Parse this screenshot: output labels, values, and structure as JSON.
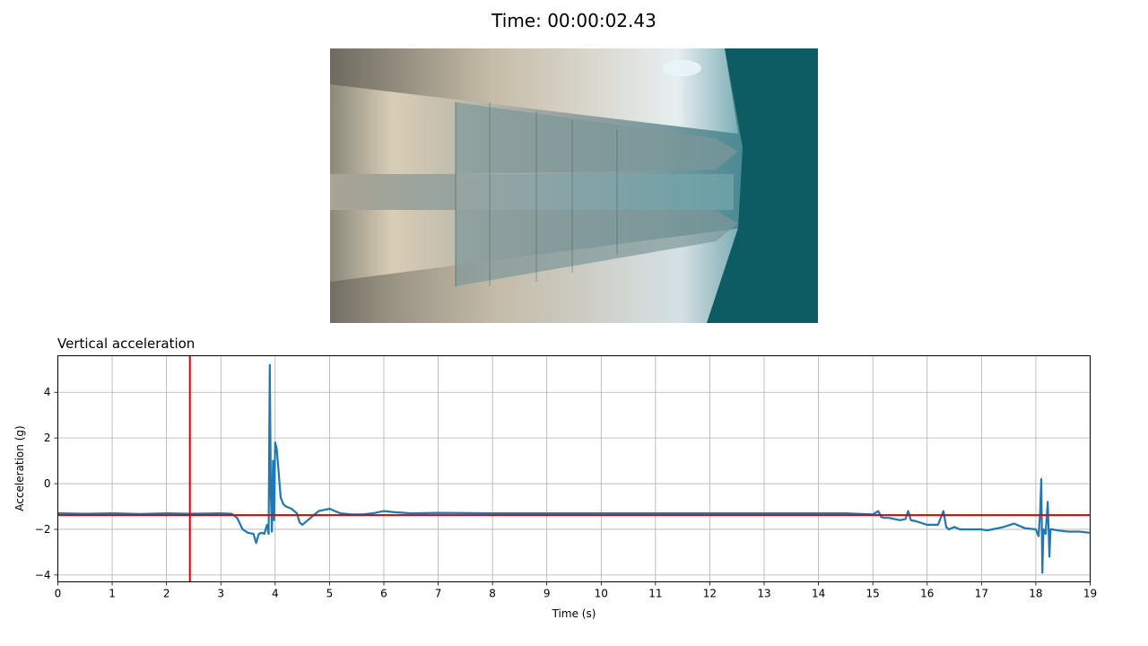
{
  "figure_title": "Time: 00:00:02.43",
  "video_frame": {
    "icon": "camera-frame-image",
    "description_colors": [
      "#9a9686",
      "#0d5b63"
    ]
  },
  "chart_data": {
    "type": "line",
    "title": "Vertical acceleration",
    "xlabel": "Time (s)",
    "ylabel": "Acceleration (g)",
    "xlim": [
      0,
      19
    ],
    "ylim": [
      -4.3,
      5.6
    ],
    "xticks": [
      0,
      1,
      2,
      3,
      4,
      5,
      6,
      7,
      8,
      9,
      10,
      11,
      12,
      13,
      14,
      15,
      16,
      17,
      18,
      19
    ],
    "yticks": [
      -4,
      -2,
      0,
      2,
      4
    ],
    "grid": true,
    "series": [
      {
        "color": "#1f77b4",
        "x": [
          0,
          0.5,
          1,
          1.5,
          2,
          2.43,
          3,
          3.2,
          3.3,
          3.4,
          3.5,
          3.6,
          3.65,
          3.7,
          3.75,
          3.8,
          3.85,
          3.88,
          3.9,
          3.92,
          3.94,
          3.96,
          3.98,
          4.0,
          4.03,
          4.06,
          4.1,
          4.15,
          4.2,
          4.3,
          4.4,
          4.45,
          4.5,
          4.6,
          4.7,
          4.8,
          4.9,
          5.0,
          5.1,
          5.2,
          5.4,
          5.6,
          5.8,
          6.0,
          6.2,
          6.5,
          7,
          8,
          9,
          10,
          11,
          12,
          13,
          14,
          14.5,
          15,
          15.1,
          15.15,
          15.2,
          15.3,
          15.5,
          15.6,
          15.65,
          15.7,
          15.8,
          16,
          16.2,
          16.3,
          16.35,
          16.4,
          16.5,
          16.6,
          16.8,
          17,
          17.1,
          17.2,
          17.4,
          17.6,
          17.8,
          18.0,
          18.05,
          18.08,
          18.1,
          18.12,
          18.14,
          18.18,
          18.22,
          18.25,
          18.27,
          18.3,
          18.4,
          18.6,
          18.8,
          19
        ],
        "y": [
          -1.3,
          -1.32,
          -1.3,
          -1.33,
          -1.3,
          -1.32,
          -1.3,
          -1.32,
          -1.5,
          -2.0,
          -2.15,
          -2.2,
          -2.6,
          -2.2,
          -2.15,
          -2.2,
          -1.8,
          -2.2,
          5.2,
          -0.5,
          -2.1,
          1.0,
          -1.6,
          1.8,
          1.5,
          0.6,
          -0.6,
          -0.9,
          -1.0,
          -1.1,
          -1.3,
          -1.7,
          -1.8,
          -1.6,
          -1.4,
          -1.2,
          -1.15,
          -1.1,
          -1.2,
          -1.3,
          -1.35,
          -1.35,
          -1.3,
          -1.2,
          -1.25,
          -1.3,
          -1.28,
          -1.3,
          -1.3,
          -1.3,
          -1.3,
          -1.3,
          -1.3,
          -1.3,
          -1.3,
          -1.35,
          -1.2,
          -1.45,
          -1.5,
          -1.5,
          -1.6,
          -1.55,
          -1.2,
          -1.6,
          -1.65,
          -1.8,
          -1.8,
          -1.2,
          -1.9,
          -2.0,
          -1.9,
          -2.0,
          -2.0,
          -2.0,
          -2.05,
          -2.0,
          -1.9,
          -1.75,
          -1.95,
          -2.0,
          -2.3,
          -1.2,
          0.2,
          -3.9,
          -2.0,
          -2.2,
          -0.8,
          -3.2,
          -2.0,
          -2.0,
          -2.05,
          -2.1,
          -2.1,
          -2.15
        ]
      }
    ],
    "cursor_x": 2.43,
    "reference_y": -1.38,
    "cursor_color": "#e00000"
  }
}
